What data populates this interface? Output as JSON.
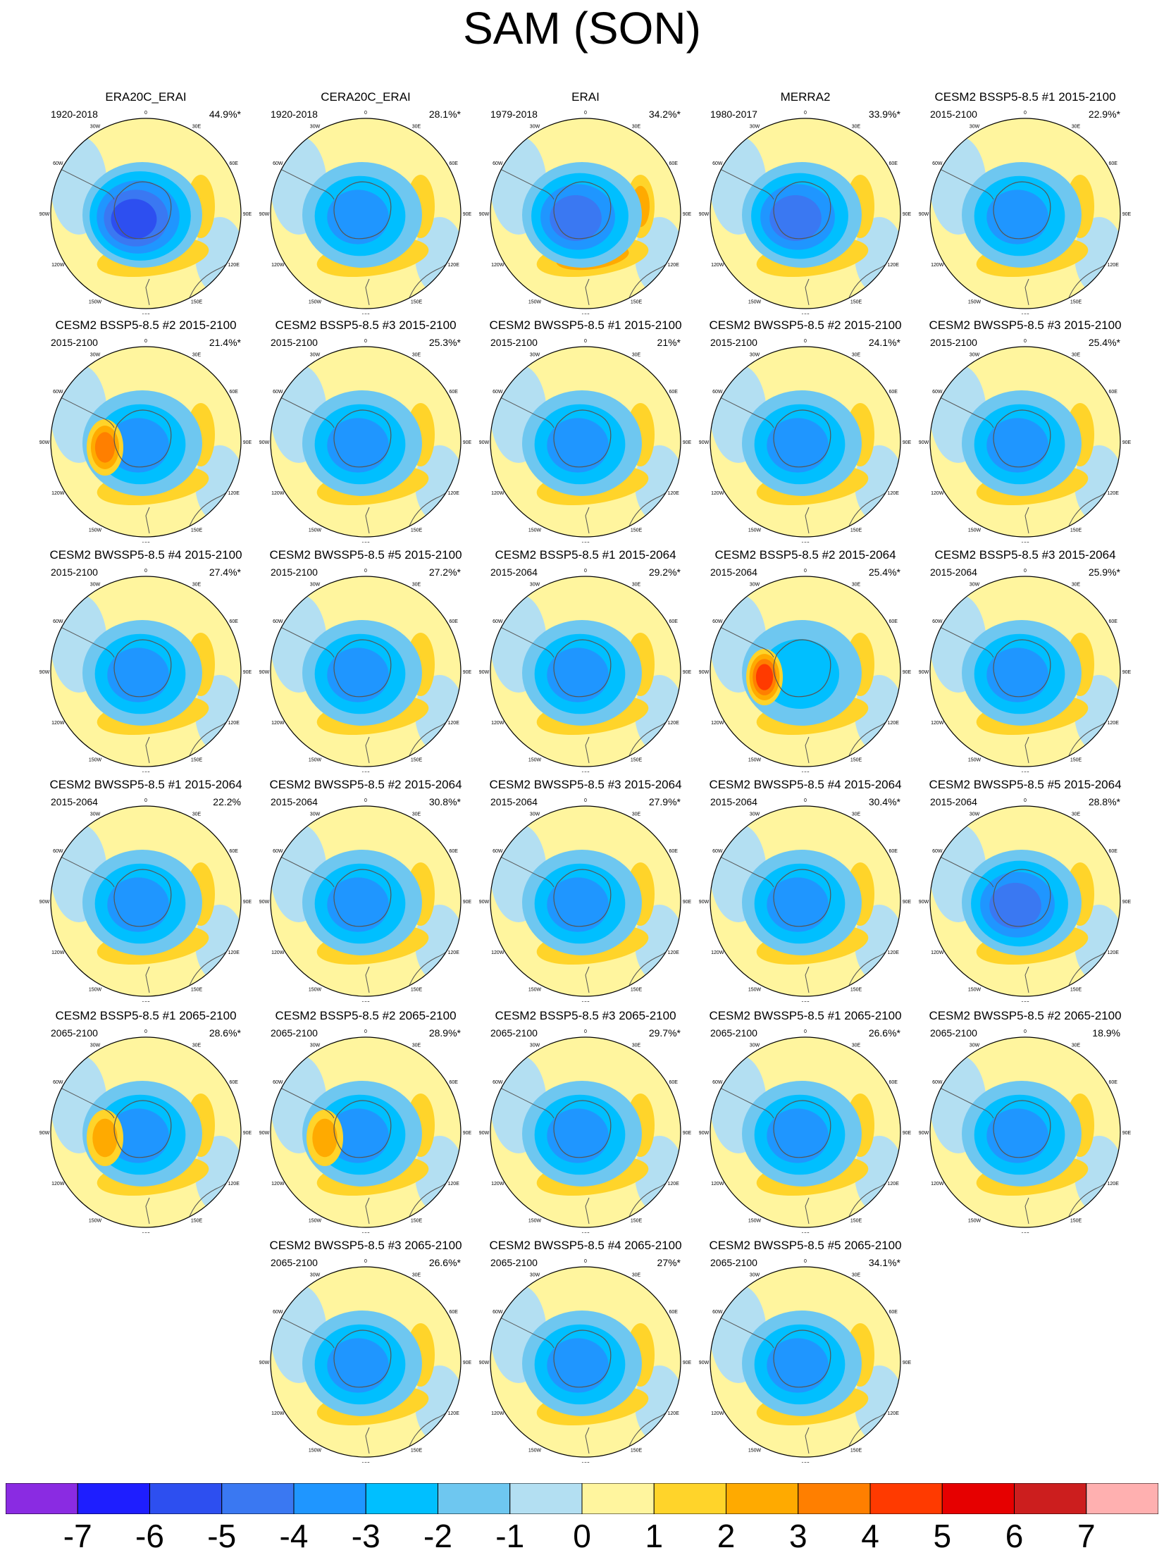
{
  "title": "SAM (SON)",
  "longitude_labels": [
    "0",
    "30E",
    "60E",
    "90E",
    "120E",
    "150E",
    "180",
    "150W",
    "120W",
    "90W",
    "60W",
    "30W"
  ],
  "colorbar": {
    "labels": [
      "-7",
      "-6",
      "-5",
      "-4",
      "-3",
      "-2",
      "-1",
      "0",
      "1",
      "2",
      "3",
      "4",
      "5",
      "6",
      "7"
    ],
    "colors": [
      "#8a2be2",
      "#1e1eff",
      "#2d4ff0",
      "#3a78f2",
      "#1f96ff",
      "#00bfff",
      "#6ec7f0",
      "#b3dff2",
      "#fff59e",
      "#ffd42a",
      "#ffaa00",
      "#ff7f00",
      "#ff3a00",
      "#e60000",
      "#cc1e1e",
      "#ffb0b0"
    ]
  },
  "panels": [
    {
      "title": "ERA20C_ERAI",
      "period": "1920-2018",
      "pct": "44.9%*",
      "neg": -5.5,
      "pos": 1.6,
      "dip": 0
    },
    {
      "title": "CERA20C_ERAI",
      "period": "1920-2018",
      "pct": "28.1%*",
      "neg": -3.5,
      "pos": 1.3,
      "dip": 0
    },
    {
      "title": "ERAI",
      "period": "1979-2018",
      "pct": "34.2%*",
      "neg": -4.5,
      "pos": 2.2,
      "dip": 0
    },
    {
      "title": "MERRA2",
      "period": "1980-2017",
      "pct": "33.9%*",
      "neg": -4.5,
      "pos": 1.8,
      "dip": 0
    },
    {
      "title": "CESM2 BSSP5-8.5 #1 2015-2100",
      "period": "2015-2100",
      "pct": "22.9%*",
      "neg": -3.2,
      "pos": 1.6,
      "dip": 0
    },
    {
      "title": "CESM2 BSSP5-8.5 #2 2015-2100",
      "period": "2015-2100",
      "pct": "21.4%*",
      "neg": -3.0,
      "pos": 1.3,
      "dip": 3.0
    },
    {
      "title": "CESM2 BSSP5-8.5 #3 2015-2100",
      "period": "2015-2100",
      "pct": "25.3%*",
      "neg": -3.2,
      "pos": 1.6,
      "dip": 0
    },
    {
      "title": "CESM2 BWSSP5-8.5 #1 2015-2100",
      "period": "2015-2100",
      "pct": "21%*",
      "neg": -3.0,
      "pos": 1.4,
      "dip": 0
    },
    {
      "title": "CESM2 BWSSP5-8.5 #2 2015-2100",
      "period": "2015-2100",
      "pct": "24.1%*",
      "neg": -3.0,
      "pos": 1.2,
      "dip": 0
    },
    {
      "title": "CESM2 BWSSP5-8.5 #3 2015-2100",
      "period": "2015-2100",
      "pct": "25.4%*",
      "neg": -3.3,
      "pos": 1.6,
      "dip": 0
    },
    {
      "title": "CESM2 BWSSP5-8.5 #4 2015-2100",
      "period": "2015-2100",
      "pct": "27.4%*",
      "neg": -3.3,
      "pos": 1.6,
      "dip": 0
    },
    {
      "title": "CESM2 BWSSP5-8.5 #5 2015-2100",
      "period": "2015-2100",
      "pct": "27.2%*",
      "neg": -3.6,
      "pos": 1.6,
      "dip": 0
    },
    {
      "title": "CESM2 BSSP5-8.5 #1 2015-2064",
      "period": "2015-2064",
      "pct": "29.2%*",
      "neg": -3.8,
      "pos": 1.8,
      "dip": 0
    },
    {
      "title": "CESM2 BSSP5-8.5 #2 2015-2064",
      "period": "2015-2064",
      "pct": "25.4%*",
      "neg": -2.0,
      "pos": 1.2,
      "dip": 4.8
    },
    {
      "title": "CESM2 BSSP5-8.5 #3 2015-2064",
      "period": "2015-2064",
      "pct": "25.9%*",
      "neg": -3.6,
      "pos": 1.7,
      "dip": 0
    },
    {
      "title": "CESM2 BWSSP5-8.5 #1 2015-2064",
      "period": "2015-2064",
      "pct": "22.2%",
      "neg": -3.5,
      "pos": 1.8,
      "dip": 0
    },
    {
      "title": "CESM2 BWSSP5-8.5 #2 2015-2064",
      "period": "2015-2064",
      "pct": "30.8%*",
      "neg": -3.8,
      "pos": 1.4,
      "dip": 0
    },
    {
      "title": "CESM2 BWSSP5-8.5 #3 2015-2064",
      "period": "2015-2064",
      "pct": "27.9%*",
      "neg": -3.6,
      "pos": 1.8,
      "dip": 0
    },
    {
      "title": "CESM2 BWSSP5-8.5 #4 2015-2064",
      "period": "2015-2064",
      "pct": "30.4%*",
      "neg": -3.8,
      "pos": 1.6,
      "dip": 0
    },
    {
      "title": "CESM2 BWSSP5-8.5 #5 2015-2064",
      "period": "2015-2064",
      "pct": "28.8%*",
      "neg": -4.2,
      "pos": 1.6,
      "dip": 0
    },
    {
      "title": "CESM2 BSSP5-8.5 #1 2065-2100",
      "period": "2065-2100",
      "pct": "28.6%*",
      "neg": -3.2,
      "pos": 1.8,
      "dip": 2.8
    },
    {
      "title": "CESM2 BSSP5-8.5 #2 2065-2100",
      "period": "2065-2100",
      "pct": "28.9%*",
      "neg": -3.8,
      "pos": 1.4,
      "dip": 2.4
    },
    {
      "title": "CESM2 BSSP5-8.5 #3 2065-2100",
      "period": "2065-2100",
      "pct": "29.7%*",
      "neg": -3.8,
      "pos": 1.8,
      "dip": 0
    },
    {
      "title": "CESM2 BWSSP5-8.5 #1 2065-2100",
      "period": "2065-2100",
      "pct": "26.6%*",
      "neg": -3.8,
      "pos": 1.4,
      "dip": 0
    },
    {
      "title": "CESM2 BWSSP5-8.5 #2 2065-2100",
      "period": "2065-2100",
      "pct": "18.9%",
      "neg": -3.0,
      "pos": 1.6,
      "dip": 0
    },
    {
      "title": "CESM2 BWSSP5-8.5 #3 2065-2100",
      "period": "2065-2100",
      "pct": "26.6%*",
      "neg": -3.8,
      "pos": 1.4,
      "dip": 0
    },
    {
      "title": "CESM2 BWSSP5-8.5 #4 2065-2100",
      "period": "2065-2100",
      "pct": "27%*",
      "neg": -3.6,
      "pos": 1.4,
      "dip": 0
    },
    {
      "title": "CESM2 BWSSP5-8.5 #5 2065-2100",
      "period": "2065-2100",
      "pct": "34.1%*",
      "neg": -3.8,
      "pos": 1.8,
      "dip": 0
    }
  ]
}
